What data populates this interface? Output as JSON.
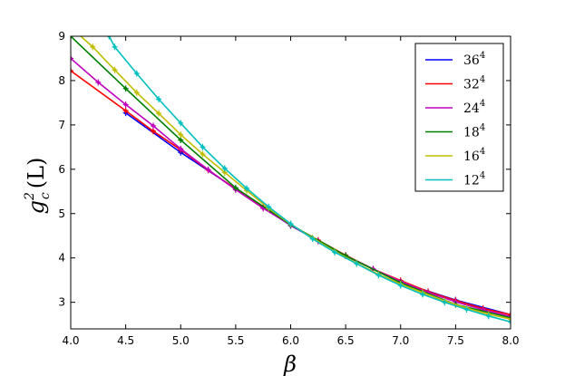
{
  "chart_data": {
    "type": "line",
    "title": "",
    "xlabel": "β",
    "ylabel": "g",
    "ylabel_sup": "2",
    "ylabel_sub": "c",
    "ylabel_suffix": "(L)",
    "xlim": [
      4.0,
      8.0
    ],
    "ylim": [
      2.4,
      9.0
    ],
    "x_ticks": [
      "4.0",
      "4.5",
      "5.0",
      "5.5",
      "6.0",
      "6.5",
      "7.0",
      "7.5",
      "8.0"
    ],
    "y_ticks": [
      "3",
      "4",
      "5",
      "6",
      "7",
      "8",
      "9"
    ],
    "x_tick_values": [
      4.0,
      4.5,
      5.0,
      5.5,
      6.0,
      6.5,
      7.0,
      7.5,
      8.0
    ],
    "y_tick_values": [
      3,
      4,
      5,
      6,
      7,
      8,
      9
    ],
    "grid": false,
    "legend_position": "top-right",
    "series": [
      {
        "name": "36",
        "name_sup": "4",
        "color": "#0000ff",
        "points": [
          [
            4.5,
            7.27
          ],
          [
            5.0,
            6.38
          ],
          [
            5.5,
            5.56
          ],
          [
            6.0,
            4.73
          ],
          [
            6.5,
            4.05
          ],
          [
            7.0,
            3.45
          ],
          [
            7.5,
            3.05
          ],
          [
            8.0,
            2.72
          ]
        ]
      },
      {
        "name": "32",
        "name_sup": "4",
        "color": "#ff0000",
        "points": [
          [
            4.0,
            8.22
          ],
          [
            4.5,
            7.32
          ],
          [
            4.75,
            6.86
          ],
          [
            5.0,
            6.44
          ],
          [
            5.25,
            5.98
          ],
          [
            5.5,
            5.56
          ],
          [
            5.75,
            5.14
          ],
          [
            6.0,
            4.74
          ],
          [
            6.25,
            4.4
          ],
          [
            6.5,
            4.06
          ],
          [
            6.75,
            3.75
          ],
          [
            7.0,
            3.49
          ],
          [
            7.25,
            3.24
          ],
          [
            7.5,
            3.04
          ],
          [
            7.75,
            2.86
          ],
          [
            8.0,
            2.72
          ]
        ]
      },
      {
        "name": "24",
        "name_sup": "4",
        "color": "#bf00bf",
        "points": [
          [
            4.0,
            8.5
          ],
          [
            4.25,
            7.96
          ],
          [
            4.5,
            7.46
          ],
          [
            4.75,
            6.98
          ],
          [
            5.0,
            6.46
          ],
          [
            5.25,
            5.99
          ],
          [
            5.5,
            5.54
          ],
          [
            5.75,
            5.12
          ],
          [
            6.0,
            4.74
          ],
          [
            6.25,
            4.38
          ],
          [
            6.5,
            4.05
          ],
          [
            6.75,
            3.75
          ],
          [
            7.0,
            3.47
          ],
          [
            7.25,
            3.22
          ],
          [
            7.5,
            3.01
          ],
          [
            7.75,
            2.83
          ],
          [
            8.0,
            2.68
          ]
        ]
      },
      {
        "name": "18",
        "name_sup": "4",
        "color": "#008000",
        "points": [
          [
            4.0,
            9.0
          ],
          [
            4.5,
            7.82
          ],
          [
            5.0,
            6.66
          ],
          [
            5.5,
            5.58
          ],
          [
            6.0,
            4.75
          ],
          [
            6.5,
            4.05
          ],
          [
            7.0,
            3.44
          ],
          [
            7.5,
            2.95
          ],
          [
            8.0,
            2.65
          ]
        ]
      },
      {
        "name": "16",
        "name_sup": "4",
        "color": "#bfbf00",
        "points": [
          [
            4.0,
            9.2
          ],
          [
            4.2,
            8.76
          ],
          [
            4.4,
            8.24
          ],
          [
            4.6,
            7.73
          ],
          [
            4.8,
            7.26
          ],
          [
            5.0,
            6.78
          ],
          [
            5.2,
            6.34
          ],
          [
            5.4,
            5.93
          ],
          [
            5.6,
            5.52
          ],
          [
            5.8,
            5.12
          ],
          [
            6.0,
            4.76
          ],
          [
            6.2,
            4.45
          ],
          [
            6.4,
            4.15
          ],
          [
            6.6,
            3.88
          ],
          [
            6.8,
            3.63
          ],
          [
            7.0,
            3.41
          ],
          [
            7.2,
            3.22
          ],
          [
            7.4,
            3.03
          ],
          [
            7.6,
            2.87
          ],
          [
            7.8,
            2.73
          ],
          [
            8.0,
            2.62
          ]
        ]
      },
      {
        "name": "12",
        "name_sup": "4",
        "color": "#00bfbf",
        "points": [
          [
            4.35,
            9.0
          ],
          [
            4.4,
            8.76
          ],
          [
            4.6,
            8.16
          ],
          [
            4.8,
            7.58
          ],
          [
            5.0,
            7.04
          ],
          [
            5.2,
            6.5
          ],
          [
            5.4,
            6.02
          ],
          [
            5.6,
            5.57
          ],
          [
            5.8,
            5.15
          ],
          [
            6.0,
            4.77
          ],
          [
            6.2,
            4.43
          ],
          [
            6.4,
            4.13
          ],
          [
            6.6,
            3.87
          ],
          [
            6.8,
            3.61
          ],
          [
            7.0,
            3.38
          ],
          [
            7.2,
            3.18
          ],
          [
            7.4,
            3.0
          ],
          [
            7.6,
            2.84
          ],
          [
            7.8,
            2.69
          ],
          [
            8.0,
            2.56
          ]
        ]
      }
    ]
  }
}
